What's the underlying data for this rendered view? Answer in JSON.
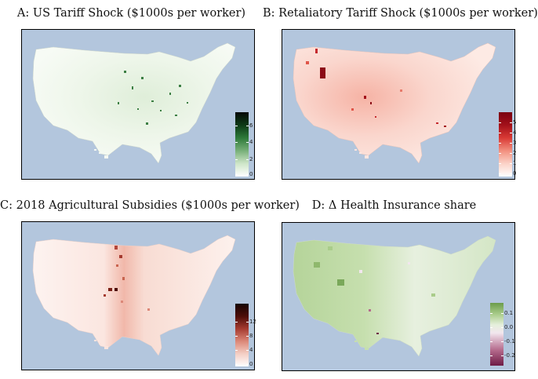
{
  "panels": [
    {
      "id": "A",
      "title": "A: US Tariff Shock ($1000s per worker)",
      "scheme": "green",
      "colors": [
        "#ffffff",
        "#cfe6c9",
        "#78b079",
        "#2e7a3a",
        "#0d3a16",
        "#050805"
      ],
      "legend_ticks": [
        "6",
        "4",
        "2",
        "0"
      ]
    },
    {
      "id": "B",
      "title": "B: Retaliatory Tariff Shock ($1000s per worker)",
      "scheme": "red",
      "colors": [
        "#ffffff",
        "#fbd3c8",
        "#f2907f",
        "#d93a35",
        "#a3111a",
        "#7a0010"
      ],
      "legend_ticks": [
        "5",
        "4",
        "3",
        "2",
        "1",
        "0"
      ]
    },
    {
      "id": "C",
      "title": "C: 2018 Agricultural Subsidies ($1000s per worker)",
      "scheme": "darkred",
      "colors": [
        "#ffffff",
        "#f4cfc5",
        "#dc8878",
        "#a63b30",
        "#4c0e09",
        "#160402"
      ],
      "legend_ticks": [
        "12",
        "8",
        "4",
        "0"
      ]
    },
    {
      "id": "D",
      "title": "D: Δ Health Insurance share",
      "scheme": "diverging",
      "colors": [
        "#6b9c4a",
        "#a9cc8a",
        "#e5f0dc",
        "#f2e6ee",
        "#b56b8d",
        "#6e1b45"
      ],
      "legend_ticks": [
        "0.1",
        "0.0",
        "-0.1",
        "-0.2"
      ]
    }
  ]
}
